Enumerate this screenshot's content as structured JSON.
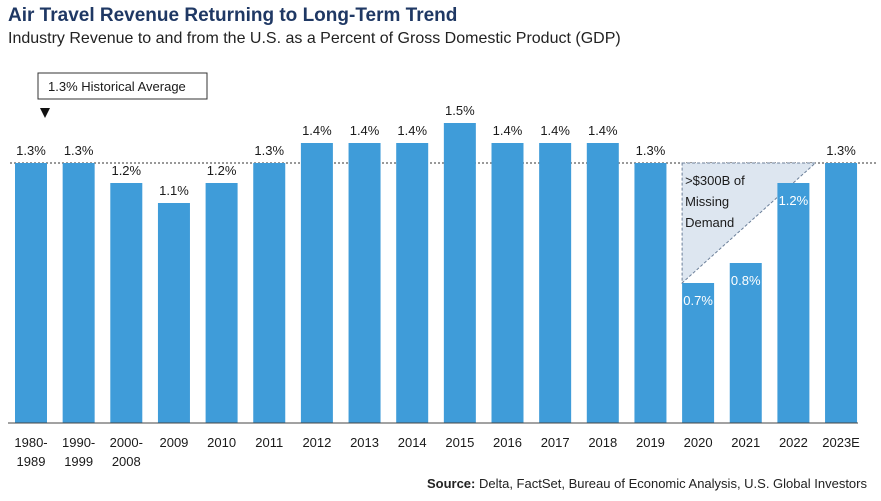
{
  "title": "Air Travel Revenue Returning to Long-Term Trend",
  "subtitle": "Industry Revenue to and from the U.S. as a Percent of Gross Domestic Product (GDP)",
  "source_label": "Source:",
  "source_text": " Delta, FactSet, Bureau of Economic Analysis, U.S. Global Investors",
  "colors": {
    "bar": "#3f9cd9",
    "title": "#1f3864",
    "gap_fill": "#dde6f0"
  },
  "chart_data": {
    "type": "bar",
    "categories": [
      "1980-1989",
      "1990-1999",
      "2000-2008",
      "2009",
      "2010",
      "2011",
      "2012",
      "2013",
      "2014",
      "2015",
      "2016",
      "2017",
      "2018",
      "2019",
      "2020",
      "2021",
      "2022",
      "2023E"
    ],
    "category_lines": [
      [
        "1980-",
        "1989"
      ],
      [
        "1990-",
        "1999"
      ],
      [
        "2000-",
        "2008"
      ],
      [
        "2009"
      ],
      [
        "2010"
      ],
      [
        "2011"
      ],
      [
        "2012"
      ],
      [
        "2013"
      ],
      [
        "2014"
      ],
      [
        "2015"
      ],
      [
        "2016"
      ],
      [
        "2017"
      ],
      [
        "2018"
      ],
      [
        "2019"
      ],
      [
        "2020"
      ],
      [
        "2021"
      ],
      [
        "2022"
      ],
      [
        "2023E"
      ]
    ],
    "values": [
      1.3,
      1.3,
      1.2,
      1.1,
      1.2,
      1.3,
      1.4,
      1.4,
      1.4,
      1.5,
      1.4,
      1.4,
      1.4,
      1.3,
      0.7,
      0.8,
      1.2,
      1.3
    ],
    "data_labels": [
      "1.3%",
      "1.3%",
      "1.2%",
      "1.1%",
      "1.2%",
      "1.3%",
      "1.4%",
      "1.4%",
      "1.4%",
      "1.5%",
      "1.4%",
      "1.4%",
      "1.4%",
      "1.3%",
      "0.7%",
      "0.8%",
      "1.2%",
      "1.3%"
    ],
    "historical_average": 1.3,
    "historical_average_label": "1.3% Historical Average",
    "gap_annotation": [
      ">$300B of",
      "Missing",
      "Demand"
    ],
    "ylim": [
      0,
      1.5
    ],
    "grid": false
  }
}
